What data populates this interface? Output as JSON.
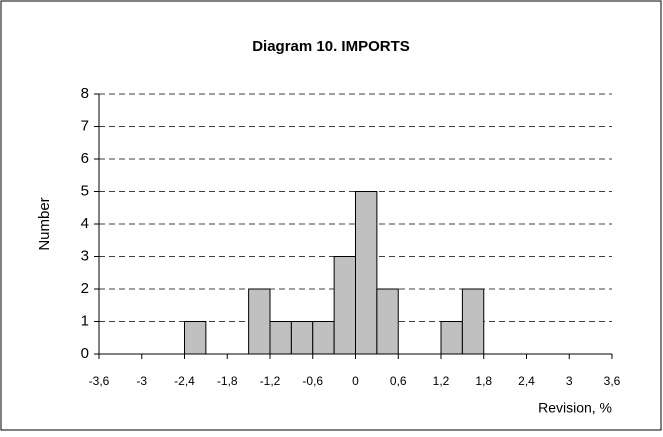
{
  "chart_data": {
    "type": "histogram",
    "title": "Diagram 10.  IMPORTS",
    "x_label": "Revision, %",
    "y_label": "Number",
    "bins": [
      -3.6,
      -3.3,
      -3.0,
      -2.7,
      -2.4,
      -2.1,
      -1.8,
      -1.5,
      -1.2,
      -0.9,
      -0.6,
      -0.3,
      0,
      0.3,
      0.6,
      0.9,
      1.2,
      1.5,
      1.8,
      2.1,
      2.4,
      2.7,
      3.0,
      3.3,
      3.6
    ],
    "values": [
      0,
      0,
      0,
      0,
      1,
      0,
      0,
      2,
      1,
      1,
      1,
      3,
      5,
      2,
      0,
      0,
      1,
      2,
      0,
      0,
      0,
      0,
      0,
      0
    ],
    "color": "#c0c0c0",
    "xlim": [
      -3.6,
      3.6
    ],
    "xticks": [
      {
        "value": -3.6,
        "label": "-3,6"
      },
      -3,
      {
        "value": -2.4,
        "label": "-2,4"
      },
      {
        "value": -1.8,
        "label": "-1,8"
      },
      {
        "value": -1.2,
        "label": "-1,2"
      },
      {
        "value": -0.6,
        "label": "-0,6"
      },
      0,
      {
        "value": 0.6,
        "label": "0,6"
      },
      {
        "value": 1.2,
        "label": "1,2"
      },
      {
        "value": 1.8,
        "label": "1,8"
      },
      {
        "value": 2.4,
        "label": "2,4"
      },
      3,
      {
        "value": 3.6,
        "label": "3,6"
      }
    ],
    "ylim": [
      0,
      8
    ],
    "yticks": [
      0,
      1,
      2,
      3,
      4,
      5,
      6,
      7,
      8
    ],
    "grid": true
  }
}
